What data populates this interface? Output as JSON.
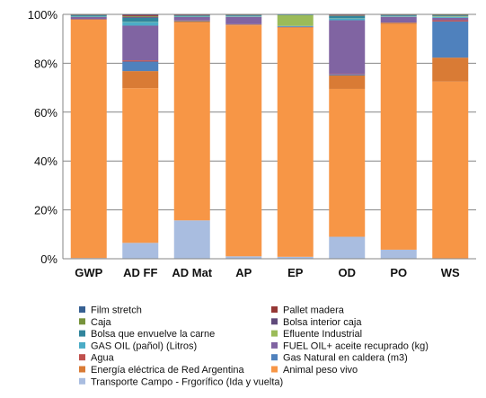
{
  "chart_data": {
    "type": "bar",
    "stacked": true,
    "categories": [
      "GWP",
      "AD FF",
      "AD Mat",
      "AP",
      "EP",
      "OD",
      "PO",
      "WS"
    ],
    "ylim": [
      0,
      100
    ],
    "yticks": [
      "0%",
      "20%",
      "40%",
      "60%",
      "80%",
      "100%"
    ],
    "grid": true,
    "legend_position": "bottom",
    "series": [
      {
        "name": "Transporte Campo - Frgorífico (Ida y vuelta)",
        "color": "#a9bde0",
        "values": [
          0.3,
          6.5,
          15.7,
          1.0,
          0.8,
          9.0,
          3.7,
          0.2
        ]
      },
      {
        "name": "Animal peso vivo",
        "color": "#f79646",
        "values": [
          97.5,
          63.3,
          80.9,
          94.5,
          93.7,
          60.5,
          92.3,
          72.3
        ]
      },
      {
        "name": "Energía eléctrica de Red Argentina",
        "color": "#d97b35",
        "values": [
          0.2,
          7.0,
          0.6,
          0.3,
          0.3,
          5.5,
          0.6,
          9.8
        ]
      },
      {
        "name": "Gas Natural en caldera (m3)",
        "color": "#4f81bd",
        "values": [
          0.0,
          3.9,
          0.3,
          0.1,
          0.0,
          0.4,
          0.0,
          14.8
        ]
      },
      {
        "name": "Agua",
        "color": "#c0504d",
        "values": [
          0.0,
          0.5,
          0.1,
          0.1,
          0.0,
          0.2,
          0.0,
          0.5
        ]
      },
      {
        "name": "FUEL OIL+ aceite recuprado (kg)",
        "color": "#8064a2",
        "values": [
          0.9,
          14.2,
          1.3,
          3.0,
          0.2,
          22.0,
          2.4,
          1.0
        ]
      },
      {
        "name": "GAS OIL (pañol) (Litros)",
        "color": "#4bacc6",
        "values": [
          0.2,
          1.5,
          0.2,
          0.2,
          0.3,
          0.7,
          0.2,
          0.4
        ]
      },
      {
        "name": "Efluente Industrial",
        "color": "#9bbb59",
        "values": [
          0.1,
          0.1,
          0.1,
          0.1,
          4.4,
          0.1,
          0.1,
          0.2
        ]
      },
      {
        "name": "Bolsa que envuelve la carne",
        "color": "#31859c",
        "values": [
          0.4,
          1.6,
          0.3,
          0.3,
          0.1,
          0.9,
          0.3,
          0.3
        ]
      },
      {
        "name": "Bolsa interior caja",
        "color": "#604a7b",
        "values": [
          0.1,
          0.4,
          0.1,
          0.1,
          0.0,
          0.2,
          0.1,
          0.1
        ]
      },
      {
        "name": "Caja",
        "color": "#77933c",
        "values": [
          0.1,
          0.3,
          0.1,
          0.1,
          0.1,
          0.2,
          0.1,
          0.2
        ]
      },
      {
        "name": "Pallet madera",
        "color": "#953735",
        "values": [
          0.1,
          0.5,
          0.2,
          0.1,
          0.0,
          0.2,
          0.1,
          0.1
        ]
      },
      {
        "name": "Film stretch",
        "color": "#376092",
        "values": [
          0.1,
          0.2,
          0.1,
          0.1,
          0.1,
          0.1,
          0.1,
          0.1
        ]
      }
    ],
    "legend_order": [
      "Film stretch",
      "Pallet madera",
      "Caja",
      "Bolsa interior caja",
      "Bolsa que envuelve la carne",
      "Efluente Industrial",
      "GAS OIL (pañol) (Litros)",
      "FUEL OIL+ aceite recuprado (kg)",
      "Agua",
      "Gas Natural en caldera (m3)",
      "Energía eléctrica de Red Argentina",
      "Animal peso vivo",
      "Transporte Campo - Frgorífico (Ida y vuelta)"
    ]
  }
}
